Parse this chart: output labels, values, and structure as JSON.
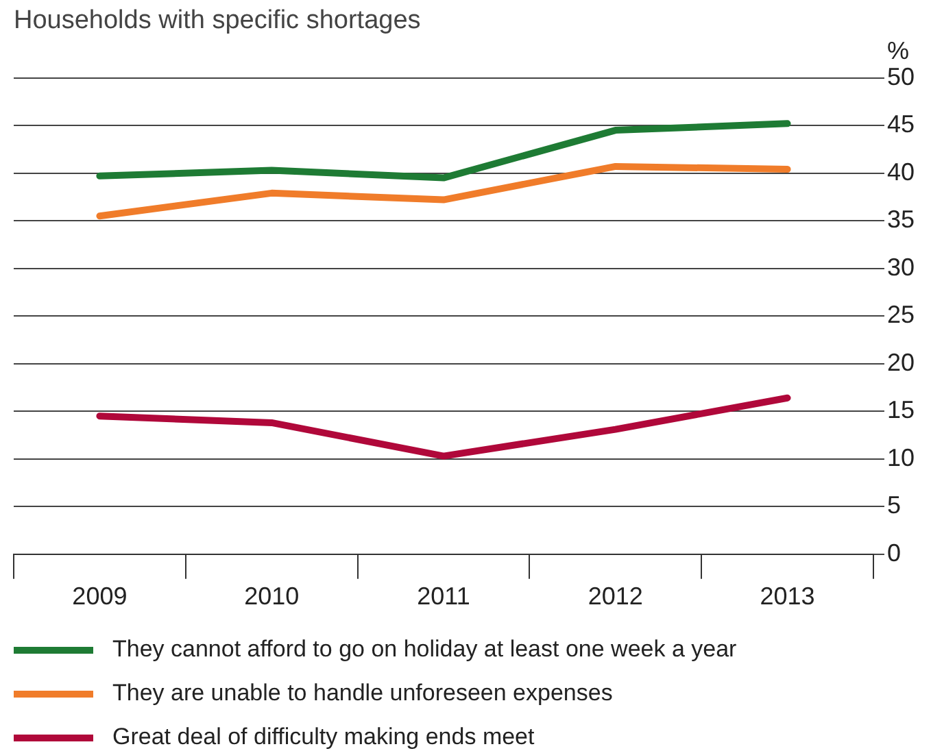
{
  "chart_data": {
    "type": "line",
    "title": "Households with specific shortages",
    "ylabel": "%",
    "categories": [
      "2009",
      "2010",
      "2011",
      "2012",
      "2013"
    ],
    "series": [
      {
        "name": "They cannot afford to go on holiday at least one week a year",
        "color": "#1e7b34",
        "values": [
          39.7,
          40.3,
          39.5,
          44.5,
          45.2
        ]
      },
      {
        "name": "They are unable to handle unforeseen expenses",
        "color": "#f07c2a",
        "values": [
          35.5,
          37.9,
          37.2,
          40.7,
          40.4
        ]
      },
      {
        "name": "Great deal of difficulty making ends meet",
        "color": "#b0083a",
        "values": [
          14.5,
          13.8,
          10.3,
          13.1,
          16.4
        ]
      }
    ],
    "ylim": [
      0,
      50
    ],
    "yticks": [
      0,
      5,
      10,
      15,
      20,
      25,
      30,
      35,
      40,
      45,
      50
    ],
    "grid": "y",
    "legend": "bottom",
    "marker": "none",
    "line_style": "solid"
  }
}
